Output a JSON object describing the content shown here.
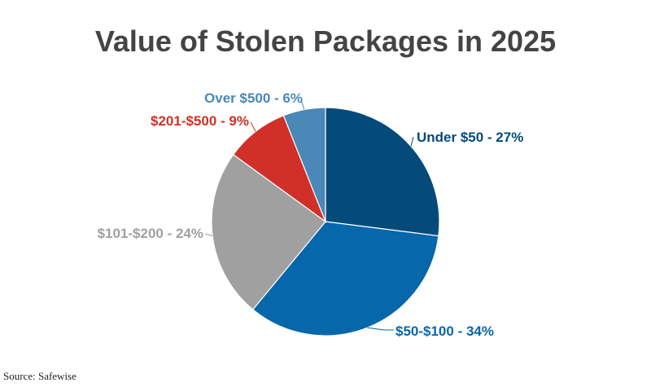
{
  "chart_data": {
    "type": "pie",
    "title": "Value of Stolen Packages in 2025",
    "slices": [
      {
        "name": "Under $50",
        "value": 27,
        "label": "Under $50 - 27%",
        "color": "#044a7a"
      },
      {
        "name": "$50-$100",
        "value": 34,
        "label": "$50-$100 - 34%",
        "color": "#0667ab"
      },
      {
        "name": "$101-$200",
        "value": 24,
        "label": "$101-$200 - 24%",
        "color": "#a0a0a0"
      },
      {
        "name": "$201-$500",
        "value": 9,
        "label": "$201-$500 - 9%",
        "color": "#d03028"
      },
      {
        "name": "Over $500",
        "value": 6,
        "label": "Over $500 - 6%",
        "color": "#4988b7"
      }
    ],
    "start_angle": "top",
    "direction": "clockwise"
  },
  "source": "Source: Safewise"
}
